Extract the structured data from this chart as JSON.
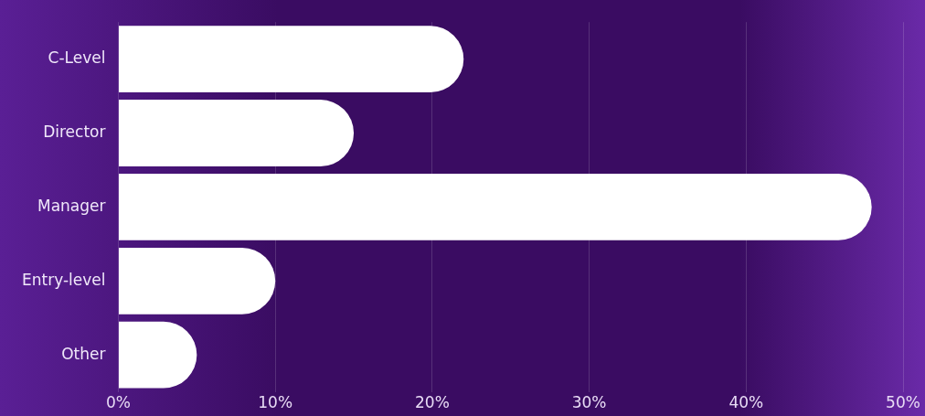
{
  "chart_data": {
    "type": "bar",
    "orientation": "horizontal",
    "categories": [
      "C-Level",
      "Director",
      "Manager",
      "Entry-level",
      "Other"
    ],
    "values": [
      22,
      15,
      48,
      10,
      5
    ],
    "color": "#ffffff",
    "xlim": [
      0,
      50
    ],
    "xticks": [
      {
        "value": 0,
        "label": "0%"
      },
      {
        "value": 10,
        "label": "10%"
      },
      {
        "value": 20,
        "label": "20%"
      },
      {
        "value": 30,
        "label": "30%"
      },
      {
        "value": 40,
        "label": "40%"
      },
      {
        "value": 50,
        "label": "50%"
      }
    ],
    "grid": "x",
    "legend": false
  }
}
